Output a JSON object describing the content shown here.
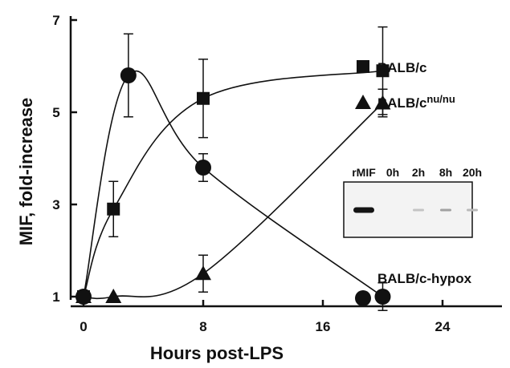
{
  "chart_data": {
    "type": "line",
    "xlabel": "Hours post-LPS",
    "ylabel": "MIF, fold-increase",
    "xlim": [
      -1,
      33
    ],
    "ylim": [
      1,
      7
    ],
    "xticks": [
      "0",
      "8",
      "16",
      "24"
    ],
    "yticks": [
      "1",
      "3",
      "5",
      "7"
    ],
    "grid": false,
    "series": [
      {
        "name": "BALB/c",
        "marker": "square",
        "points": [
          {
            "x": 0,
            "y": 1.0,
            "err": 0
          },
          {
            "x": 2,
            "y": 2.9,
            "err": 0.6
          },
          {
            "x": 8,
            "y": 5.3,
            "err": 0.85
          },
          {
            "x": 20,
            "y": 5.9,
            "err": 0.95
          }
        ]
      },
      {
        "name": "BALB/c",
        "name_superscript": "nu/nu",
        "marker": "triangle",
        "points": [
          {
            "x": 0,
            "y": 1.0,
            "err": 0
          },
          {
            "x": 2,
            "y": 1.0,
            "err": 0
          },
          {
            "x": 8,
            "y": 1.5,
            "err": 0.4
          },
          {
            "x": 20,
            "y": 5.2,
            "err": 0.3
          }
        ]
      },
      {
        "name": "BALB/c-hypox",
        "marker": "circle",
        "points": [
          {
            "x": 0,
            "y": 1.0,
            "err": 0
          },
          {
            "x": 3,
            "y": 5.8,
            "err": 0.9
          },
          {
            "x": 8,
            "y": 3.8,
            "err": 0.3
          },
          {
            "x": 20,
            "y": 1.0,
            "err": 0.3
          }
        ]
      }
    ],
    "inset": {
      "lanes": [
        "rMIF",
        "0h",
        "2h",
        "8h",
        "20h"
      ],
      "band_intensity": [
        1.0,
        0.0,
        0.25,
        0.4,
        0.3
      ]
    }
  }
}
